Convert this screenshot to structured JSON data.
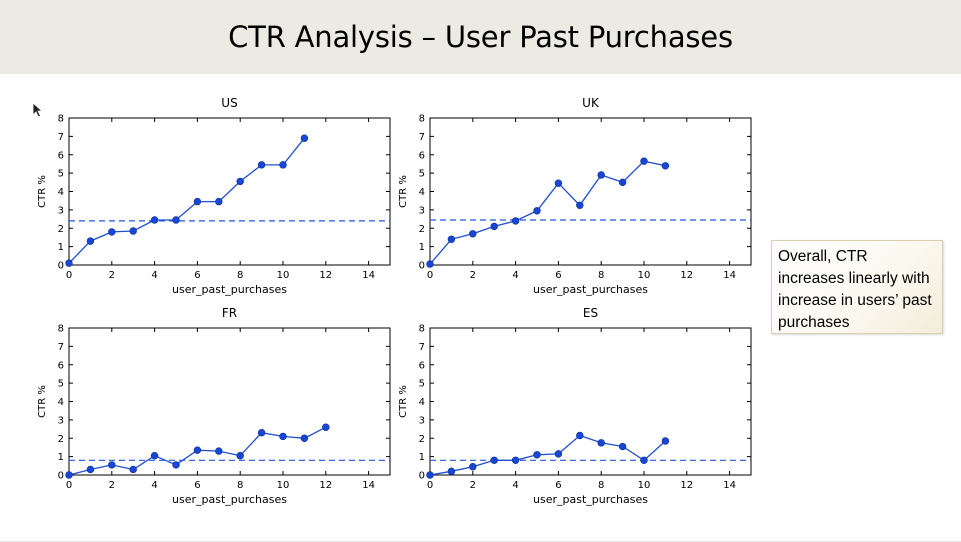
{
  "slide": {
    "title": "CTR Analysis – User Past Purchases",
    "callout": "Overall, CTR increases linearly with increase in users’ past purchases"
  },
  "colors": {
    "title_bar_bg": "#ecebe3",
    "series": "#1f4fd0",
    "marker": "#1846d8",
    "reference_line": "#2355e0"
  },
  "chart_data": [
    {
      "type": "line",
      "title": "US",
      "xlabel": "user_past_purchases",
      "ylabel": "CTR %",
      "xlim": [
        0,
        15
      ],
      "ylim": [
        0,
        8
      ],
      "xticks": [
        0,
        2,
        4,
        6,
        8,
        10,
        12,
        14
      ],
      "yticks": [
        0,
        1,
        2,
        3,
        4,
        5,
        6,
        7,
        8
      ],
      "x": [
        0,
        1,
        2,
        3,
        4,
        5,
        6,
        7,
        8,
        9,
        10,
        11
      ],
      "y": [
        0.1,
        1.3,
        1.8,
        1.85,
        2.45,
        2.45,
        3.45,
        3.45,
        4.55,
        5.45,
        5.45,
        6.9
      ],
      "reference_line": 2.4
    },
    {
      "type": "line",
      "title": "UK",
      "xlabel": "user_past_purchases",
      "ylabel": "CTR %",
      "xlim": [
        0,
        15
      ],
      "ylim": [
        0,
        8
      ],
      "xticks": [
        0,
        2,
        4,
        6,
        8,
        10,
        12,
        14
      ],
      "yticks": [
        0,
        1,
        2,
        3,
        4,
        5,
        6,
        7,
        8
      ],
      "x": [
        0,
        1,
        2,
        3,
        4,
        5,
        6,
        7,
        8,
        9,
        10,
        11
      ],
      "y": [
        0.05,
        1.4,
        1.7,
        2.1,
        2.4,
        2.95,
        4.45,
        3.25,
        4.9,
        4.5,
        5.65,
        5.4
      ],
      "reference_line": 2.45
    },
    {
      "type": "line",
      "title": "FR",
      "xlabel": "user_past_purchases",
      "ylabel": "CTR %",
      "xlim": [
        0,
        15
      ],
      "ylim": [
        0,
        8
      ],
      "xticks": [
        0,
        2,
        4,
        6,
        8,
        10,
        12,
        14
      ],
      "yticks": [
        0,
        1,
        2,
        3,
        4,
        5,
        6,
        7,
        8
      ],
      "x": [
        0,
        1,
        2,
        3,
        4,
        5,
        6,
        7,
        8,
        9,
        10,
        11,
        12
      ],
      "y": [
        0.0,
        0.3,
        0.55,
        0.3,
        1.05,
        0.55,
        1.35,
        1.3,
        1.05,
        2.3,
        2.1,
        2.0,
        2.6
      ],
      "reference_line": 0.8
    },
    {
      "type": "line",
      "title": "ES",
      "xlabel": "user_past_purchases",
      "ylabel": "CTR %",
      "xlim": [
        0,
        15
      ],
      "ylim": [
        0,
        8
      ],
      "xticks": [
        0,
        2,
        4,
        6,
        8,
        10,
        12,
        14
      ],
      "yticks": [
        0,
        1,
        2,
        3,
        4,
        5,
        6,
        7,
        8
      ],
      "x": [
        0,
        1,
        2,
        3,
        4,
        5,
        6,
        7,
        8,
        9,
        10,
        11
      ],
      "y": [
        0.0,
        0.2,
        0.45,
        0.8,
        0.8,
        1.1,
        1.15,
        2.15,
        1.75,
        1.55,
        0.8,
        1.85
      ],
      "reference_line": 0.8
    }
  ]
}
